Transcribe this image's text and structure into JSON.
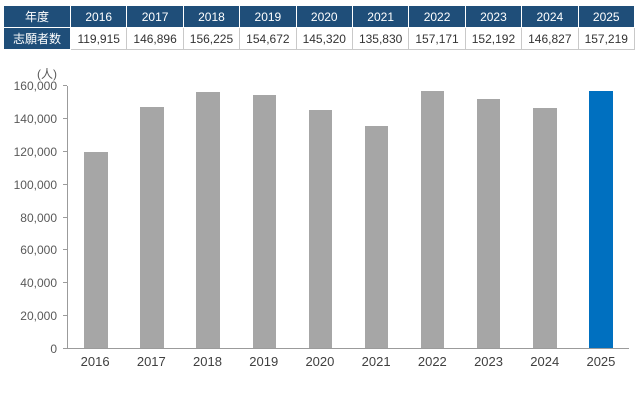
{
  "table": {
    "header_label": "年度",
    "row_label": "志願者数",
    "years": [
      "2016",
      "2017",
      "2018",
      "2019",
      "2020",
      "2021",
      "2022",
      "2023",
      "2024",
      "2025"
    ],
    "values": [
      "119,915",
      "146,896",
      "156,225",
      "154,672",
      "145,320",
      "135,830",
      "157,171",
      "152,192",
      "146,827",
      "157,219"
    ]
  },
  "chart_data": {
    "type": "bar",
    "title": "",
    "xlabel": "",
    "ylabel": "(人)",
    "categories": [
      "2016",
      "2017",
      "2018",
      "2019",
      "2020",
      "2021",
      "2022",
      "2023",
      "2024",
      "2025"
    ],
    "values": [
      119915,
      146896,
      156225,
      154672,
      145320,
      135830,
      157171,
      152192,
      146827,
      157219
    ],
    "ylim": [
      0,
      160000
    ],
    "ytick_step": 20000,
    "yticks": [
      "0",
      "20,000",
      "40,000",
      "60,000",
      "80,000",
      "100,000",
      "120,000",
      "140,000",
      "160,000"
    ],
    "grid": false,
    "legend": "none",
    "bar_color": "#a6a6a6",
    "highlight_color": "#0070c0",
    "highlight_index": 9
  },
  "colors": {
    "header_bg": "#1f4e79",
    "header_text": "#ffffff",
    "axis": "#9b9b9b",
    "cell_border": "#c9c9c9"
  }
}
